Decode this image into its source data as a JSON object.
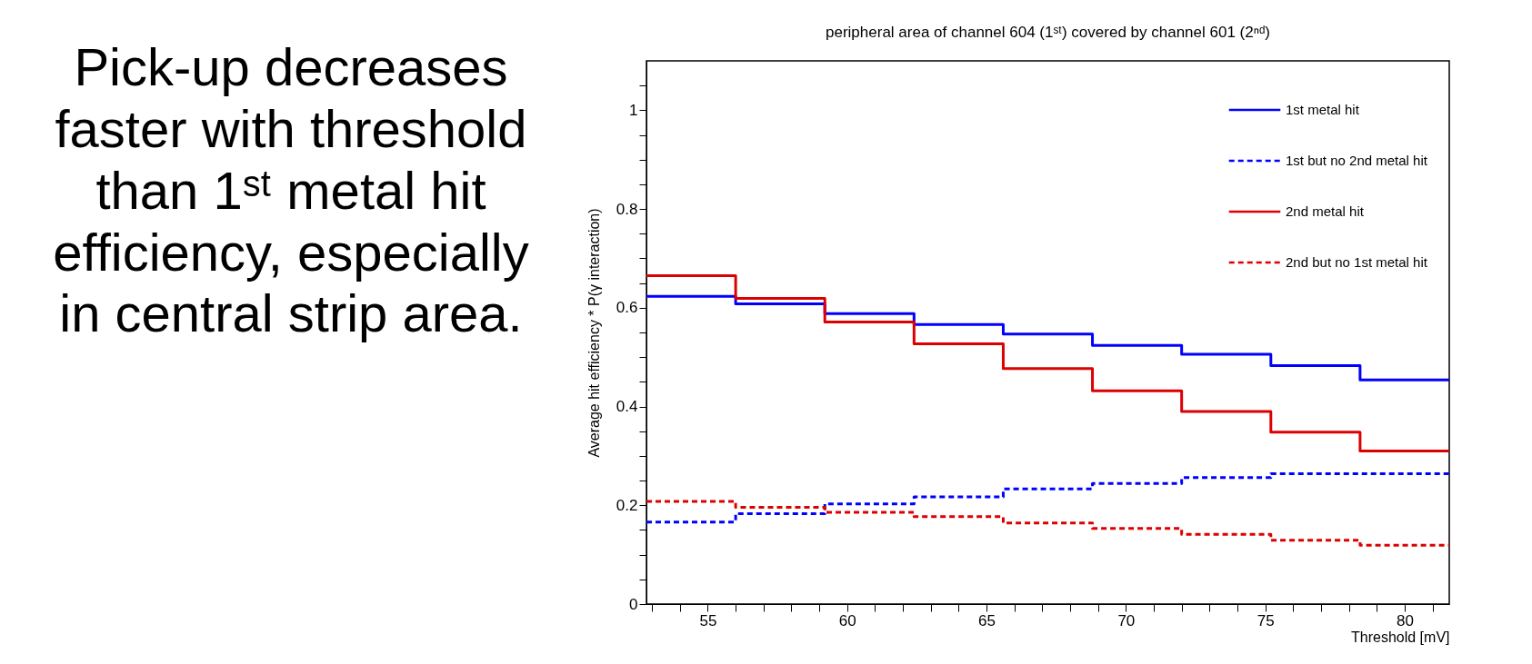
{
  "chart_data": {
    "type": "step",
    "title": "peripheral area of channel 604 (1ˢᵗ) covered by channel 601 (2ⁿᵈ)",
    "xlabel": "Threshold [mV]",
    "ylabel": "Average hit efficiency * P(γ interaction)",
    "annotations": [
      "Pick-up decreases faster with threshold than 1ˢᵗ metal hit efficiency, especially in central strip area."
    ],
    "x": [
      52.8,
      56.0,
      59.2,
      62.4,
      65.6,
      68.8,
      72.0,
      75.2,
      78.4,
      81.6
    ],
    "series": [
      {
        "name": "1st metal hit",
        "color": "#0000ff",
        "line_style": "solid",
        "values": [
          0.623,
          0.608,
          0.588,
          0.566,
          0.547,
          0.524,
          0.506,
          0.483,
          0.454,
          0.454
        ]
      },
      {
        "name": "1st but no 2nd metal hit",
        "color": "#0000ff",
        "line_style": "dashed",
        "values": [
          0.166,
          0.183,
          0.203,
          0.217,
          0.233,
          0.244,
          0.256,
          0.264,
          0.264,
          0.264
        ]
      },
      {
        "name": "2nd metal hit",
        "color": "#dd0000",
        "line_style": "solid",
        "values": [
          0.665,
          0.619,
          0.571,
          0.527,
          0.477,
          0.432,
          0.39,
          0.348,
          0.31,
          0.31
        ]
      },
      {
        "name": "2nd but no 1st metal hit",
        "color": "#dd0000",
        "line_style": "dashed",
        "values": [
          0.208,
          0.196,
          0.186,
          0.177,
          0.164,
          0.153,
          0.141,
          0.129,
          0.119,
          0.119
        ]
      }
    ],
    "xlim": [
      52.8,
      81.6
    ],
    "xticks": [
      {
        "value": 53,
        "label": null
      },
      {
        "value": 54,
        "label": null
      },
      55,
      {
        "value": 56,
        "label": null
      },
      {
        "value": 57,
        "label": null
      },
      {
        "value": 58,
        "label": null
      },
      {
        "value": 59,
        "label": null
      },
      60,
      {
        "value": 61,
        "label": null
      },
      {
        "value": 62,
        "label": null
      },
      {
        "value": 63,
        "label": null
      },
      {
        "value": 64,
        "label": null
      },
      65,
      {
        "value": 66,
        "label": null
      },
      {
        "value": 67,
        "label": null
      },
      {
        "value": 68,
        "label": null
      },
      {
        "value": 69,
        "label": null
      },
      70,
      {
        "value": 71,
        "label": null
      },
      {
        "value": 72,
        "label": null
      },
      {
        "value": 73,
        "label": null
      },
      {
        "value": 74,
        "label": null
      },
      75,
      {
        "value": 76,
        "label": null
      },
      {
        "value": 77,
        "label": null
      },
      {
        "value": 78,
        "label": null
      },
      {
        "value": 79,
        "label": null
      },
      80,
      {
        "value": 81,
        "label": null
      }
    ],
    "ylim": [
      0,
      1.1
    ],
    "yticks": [
      0,
      {
        "value": 0.05,
        "label": null
      },
      {
        "value": 0.1,
        "label": null
      },
      {
        "value": 0.15,
        "label": null
      },
      0.2,
      {
        "value": 0.25,
        "label": null
      },
      {
        "value": 0.3,
        "label": null
      },
      {
        "value": 0.35,
        "label": null
      },
      0.4,
      {
        "value": 0.45,
        "label": null
      },
      {
        "value": 0.5,
        "label": null
      },
      {
        "value": 0.55,
        "label": null
      },
      0.6,
      {
        "value": 0.65,
        "label": null
      },
      {
        "value": 0.7,
        "label": null
      },
      {
        "value": 0.75,
        "label": null
      },
      0.8,
      {
        "value": 0.85,
        "label": null
      },
      {
        "value": 0.9,
        "label": null
      },
      {
        "value": 0.95,
        "label": null
      },
      1,
      {
        "value": 1.05,
        "label": null
      }
    ],
    "grid": false,
    "legend": "top right"
  }
}
